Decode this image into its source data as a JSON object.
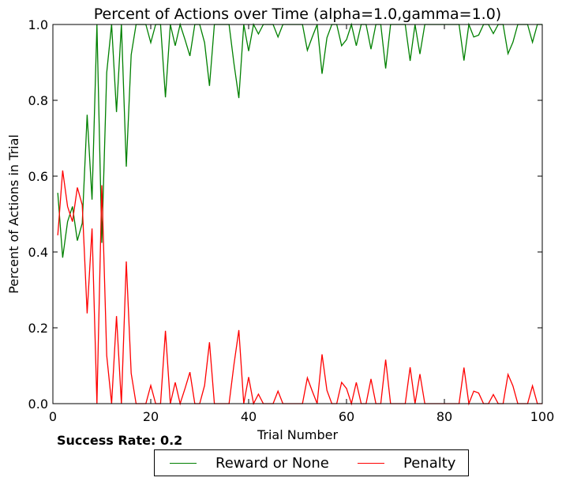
{
  "chart_data": {
    "type": "line",
    "title": "Percent of Actions over Time (alpha=1.0,gamma=1.0)",
    "xlabel": "Trial Number",
    "ylabel": "Percent of Actions in Trial",
    "xlim": [
      0,
      100
    ],
    "ylim": [
      0.0,
      1.0
    ],
    "xticks": [
      "0",
      "20",
      "40",
      "60",
      "80",
      "100"
    ],
    "yticks": [
      "0.0",
      "0.2",
      "0.4",
      "0.6",
      "0.8",
      "1.0"
    ],
    "grid": false,
    "legend_position": "bottom-center-outside",
    "x": [
      1,
      2,
      3,
      4,
      5,
      6,
      7,
      8,
      9,
      10,
      11,
      12,
      13,
      14,
      15,
      16,
      17,
      18,
      19,
      20,
      21,
      22,
      23,
      24,
      25,
      26,
      27,
      28,
      29,
      30,
      31,
      32,
      33,
      34,
      35,
      36,
      37,
      38,
      39,
      40,
      41,
      42,
      43,
      44,
      45,
      46,
      47,
      48,
      49,
      50,
      51,
      52,
      53,
      54,
      55,
      56,
      57,
      58,
      59,
      60,
      61,
      62,
      63,
      64,
      65,
      66,
      67,
      68,
      69,
      70,
      71,
      72,
      73,
      74,
      75,
      76,
      77,
      78,
      79,
      80,
      81,
      82,
      83,
      84,
      85,
      86,
      87,
      88,
      89,
      90,
      91,
      92,
      93,
      94,
      95,
      96,
      97,
      98,
      99,
      100
    ],
    "series": [
      {
        "name": "Reward or None",
        "color": "#008000",
        "values": [
          0.556,
          0.385,
          0.48,
          0.52,
          0.43,
          0.476,
          0.762,
          0.538,
          1.0,
          0.424,
          0.873,
          1.0,
          0.769,
          1.0,
          0.625,
          0.92,
          1.0,
          1.0,
          1.0,
          0.952,
          1.0,
          1.0,
          0.808,
          1.0,
          0.944,
          1.0,
          0.96,
          0.917,
          1.0,
          1.0,
          0.952,
          0.838,
          1.0,
          1.0,
          1.0,
          1.0,
          0.897,
          0.806,
          1.0,
          0.93,
          1.0,
          0.975,
          1.0,
          1.0,
          1.0,
          0.967,
          1.0,
          1.0,
          1.0,
          1.0,
          1.0,
          0.932,
          0.967,
          1.0,
          0.87,
          0.965,
          1.0,
          1.0,
          0.944,
          0.96,
          1.0,
          0.944,
          1.0,
          1.0,
          0.935,
          1.0,
          1.0,
          0.884,
          1.0,
          1.0,
          1.0,
          1.0,
          0.904,
          1.0,
          0.922,
          1.0,
          1.0,
          1.0,
          1.0,
          1.0,
          1.0,
          1.0,
          1.0,
          0.905,
          1.0,
          0.967,
          0.972,
          1.0,
          1.0,
          0.976,
          1.0,
          1.0,
          0.923,
          0.953,
          1.0,
          1.0,
          1.0,
          0.953,
          1.0,
          1.0
        ]
      },
      {
        "name": "Penalty",
        "color": "#ff0000",
        "values": [
          0.444,
          0.615,
          0.52,
          0.48,
          0.57,
          0.524,
          0.238,
          0.462,
          0.0,
          0.576,
          0.127,
          0.0,
          0.231,
          0.0,
          0.375,
          0.08,
          0.0,
          0.0,
          0.0,
          0.048,
          0.0,
          0.0,
          0.192,
          0.0,
          0.056,
          0.0,
          0.04,
          0.083,
          0.0,
          0.0,
          0.048,
          0.162,
          0.0,
          0.0,
          0.0,
          0.0,
          0.103,
          0.194,
          0.0,
          0.07,
          0.0,
          0.025,
          0.0,
          0.0,
          0.0,
          0.033,
          0.0,
          0.0,
          0.0,
          0.0,
          0.0,
          0.068,
          0.033,
          0.0,
          0.13,
          0.035,
          0.0,
          0.0,
          0.056,
          0.04,
          0.0,
          0.056,
          0.0,
          0.0,
          0.065,
          0.0,
          0.0,
          0.116,
          0.0,
          0.0,
          0.0,
          0.0,
          0.096,
          0.0,
          0.078,
          0.0,
          0.0,
          0.0,
          0.0,
          0.0,
          0.0,
          0.0,
          0.0,
          0.095,
          0.0,
          0.033,
          0.028,
          0.0,
          0.0,
          0.024,
          0.0,
          0.0,
          0.077,
          0.047,
          0.0,
          0.0,
          0.0,
          0.047,
          0.0,
          0.0
        ]
      }
    ]
  },
  "footer": {
    "success_label": "Success Rate: 0.2"
  }
}
